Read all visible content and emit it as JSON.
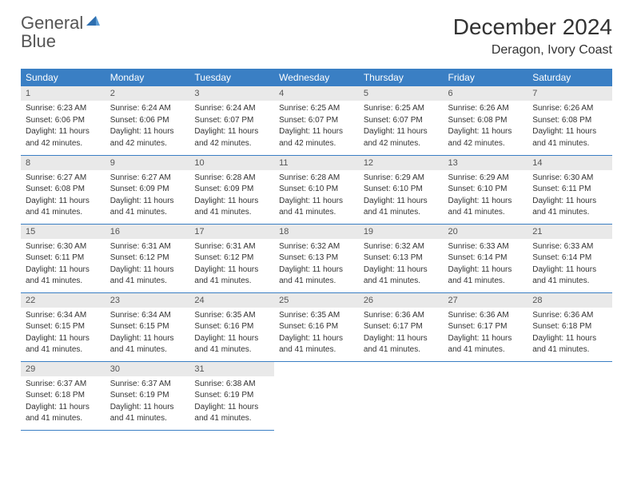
{
  "logo": {
    "general": "General",
    "blue": "Blue"
  },
  "title": "December 2024",
  "location": "Deragon, Ivory Coast",
  "colors": {
    "header_bg": "#3a7fc4",
    "header_text": "#ffffff",
    "daynum_bg": "#e9e9e9",
    "row_border": "#3a7fc4",
    "body_text": "#333333",
    "logo_gray": "#555555",
    "logo_blue": "#3a7fc4",
    "page_bg": "#ffffff"
  },
  "typography": {
    "title_fontsize": 28,
    "location_fontsize": 16,
    "weekday_fontsize": 12,
    "daynum_fontsize": 11,
    "info_fontsize": 10
  },
  "weekdays": [
    "Sunday",
    "Monday",
    "Tuesday",
    "Wednesday",
    "Thursday",
    "Friday",
    "Saturday"
  ],
  "weeks": [
    [
      {
        "n": "1",
        "sunrise": "Sunrise: 6:23 AM",
        "sunset": "Sunset: 6:06 PM",
        "day1": "Daylight: 11 hours",
        "day2": "and 42 minutes."
      },
      {
        "n": "2",
        "sunrise": "Sunrise: 6:24 AM",
        "sunset": "Sunset: 6:06 PM",
        "day1": "Daylight: 11 hours",
        "day2": "and 42 minutes."
      },
      {
        "n": "3",
        "sunrise": "Sunrise: 6:24 AM",
        "sunset": "Sunset: 6:07 PM",
        "day1": "Daylight: 11 hours",
        "day2": "and 42 minutes."
      },
      {
        "n": "4",
        "sunrise": "Sunrise: 6:25 AM",
        "sunset": "Sunset: 6:07 PM",
        "day1": "Daylight: 11 hours",
        "day2": "and 42 minutes."
      },
      {
        "n": "5",
        "sunrise": "Sunrise: 6:25 AM",
        "sunset": "Sunset: 6:07 PM",
        "day1": "Daylight: 11 hours",
        "day2": "and 42 minutes."
      },
      {
        "n": "6",
        "sunrise": "Sunrise: 6:26 AM",
        "sunset": "Sunset: 6:08 PM",
        "day1": "Daylight: 11 hours",
        "day2": "and 42 minutes."
      },
      {
        "n": "7",
        "sunrise": "Sunrise: 6:26 AM",
        "sunset": "Sunset: 6:08 PM",
        "day1": "Daylight: 11 hours",
        "day2": "and 41 minutes."
      }
    ],
    [
      {
        "n": "8",
        "sunrise": "Sunrise: 6:27 AM",
        "sunset": "Sunset: 6:08 PM",
        "day1": "Daylight: 11 hours",
        "day2": "and 41 minutes."
      },
      {
        "n": "9",
        "sunrise": "Sunrise: 6:27 AM",
        "sunset": "Sunset: 6:09 PM",
        "day1": "Daylight: 11 hours",
        "day2": "and 41 minutes."
      },
      {
        "n": "10",
        "sunrise": "Sunrise: 6:28 AM",
        "sunset": "Sunset: 6:09 PM",
        "day1": "Daylight: 11 hours",
        "day2": "and 41 minutes."
      },
      {
        "n": "11",
        "sunrise": "Sunrise: 6:28 AM",
        "sunset": "Sunset: 6:10 PM",
        "day1": "Daylight: 11 hours",
        "day2": "and 41 minutes."
      },
      {
        "n": "12",
        "sunrise": "Sunrise: 6:29 AM",
        "sunset": "Sunset: 6:10 PM",
        "day1": "Daylight: 11 hours",
        "day2": "and 41 minutes."
      },
      {
        "n": "13",
        "sunrise": "Sunrise: 6:29 AM",
        "sunset": "Sunset: 6:10 PM",
        "day1": "Daylight: 11 hours",
        "day2": "and 41 minutes."
      },
      {
        "n": "14",
        "sunrise": "Sunrise: 6:30 AM",
        "sunset": "Sunset: 6:11 PM",
        "day1": "Daylight: 11 hours",
        "day2": "and 41 minutes."
      }
    ],
    [
      {
        "n": "15",
        "sunrise": "Sunrise: 6:30 AM",
        "sunset": "Sunset: 6:11 PM",
        "day1": "Daylight: 11 hours",
        "day2": "and 41 minutes."
      },
      {
        "n": "16",
        "sunrise": "Sunrise: 6:31 AM",
        "sunset": "Sunset: 6:12 PM",
        "day1": "Daylight: 11 hours",
        "day2": "and 41 minutes."
      },
      {
        "n": "17",
        "sunrise": "Sunrise: 6:31 AM",
        "sunset": "Sunset: 6:12 PM",
        "day1": "Daylight: 11 hours",
        "day2": "and 41 minutes."
      },
      {
        "n": "18",
        "sunrise": "Sunrise: 6:32 AM",
        "sunset": "Sunset: 6:13 PM",
        "day1": "Daylight: 11 hours",
        "day2": "and 41 minutes."
      },
      {
        "n": "19",
        "sunrise": "Sunrise: 6:32 AM",
        "sunset": "Sunset: 6:13 PM",
        "day1": "Daylight: 11 hours",
        "day2": "and 41 minutes."
      },
      {
        "n": "20",
        "sunrise": "Sunrise: 6:33 AM",
        "sunset": "Sunset: 6:14 PM",
        "day1": "Daylight: 11 hours",
        "day2": "and 41 minutes."
      },
      {
        "n": "21",
        "sunrise": "Sunrise: 6:33 AM",
        "sunset": "Sunset: 6:14 PM",
        "day1": "Daylight: 11 hours",
        "day2": "and 41 minutes."
      }
    ],
    [
      {
        "n": "22",
        "sunrise": "Sunrise: 6:34 AM",
        "sunset": "Sunset: 6:15 PM",
        "day1": "Daylight: 11 hours",
        "day2": "and 41 minutes."
      },
      {
        "n": "23",
        "sunrise": "Sunrise: 6:34 AM",
        "sunset": "Sunset: 6:15 PM",
        "day1": "Daylight: 11 hours",
        "day2": "and 41 minutes."
      },
      {
        "n": "24",
        "sunrise": "Sunrise: 6:35 AM",
        "sunset": "Sunset: 6:16 PM",
        "day1": "Daylight: 11 hours",
        "day2": "and 41 minutes."
      },
      {
        "n": "25",
        "sunrise": "Sunrise: 6:35 AM",
        "sunset": "Sunset: 6:16 PM",
        "day1": "Daylight: 11 hours",
        "day2": "and 41 minutes."
      },
      {
        "n": "26",
        "sunrise": "Sunrise: 6:36 AM",
        "sunset": "Sunset: 6:17 PM",
        "day1": "Daylight: 11 hours",
        "day2": "and 41 minutes."
      },
      {
        "n": "27",
        "sunrise": "Sunrise: 6:36 AM",
        "sunset": "Sunset: 6:17 PM",
        "day1": "Daylight: 11 hours",
        "day2": "and 41 minutes."
      },
      {
        "n": "28",
        "sunrise": "Sunrise: 6:36 AM",
        "sunset": "Sunset: 6:18 PM",
        "day1": "Daylight: 11 hours",
        "day2": "and 41 minutes."
      }
    ],
    [
      {
        "n": "29",
        "sunrise": "Sunrise: 6:37 AM",
        "sunset": "Sunset: 6:18 PM",
        "day1": "Daylight: 11 hours",
        "day2": "and 41 minutes."
      },
      {
        "n": "30",
        "sunrise": "Sunrise: 6:37 AM",
        "sunset": "Sunset: 6:19 PM",
        "day1": "Daylight: 11 hours",
        "day2": "and 41 minutes."
      },
      {
        "n": "31",
        "sunrise": "Sunrise: 6:38 AM",
        "sunset": "Sunset: 6:19 PM",
        "day1": "Daylight: 11 hours",
        "day2": "and 41 minutes."
      },
      {
        "empty": true
      },
      {
        "empty": true
      },
      {
        "empty": true
      },
      {
        "empty": true
      }
    ]
  ]
}
